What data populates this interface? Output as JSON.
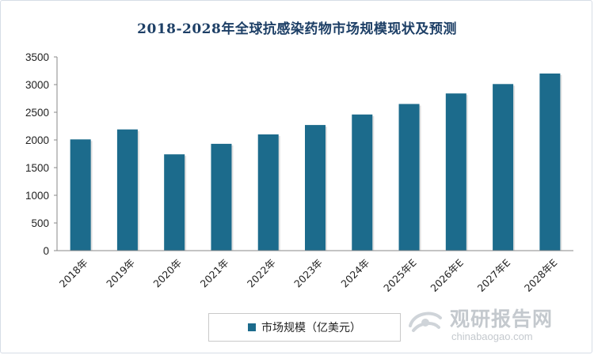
{
  "chart_data": {
    "type": "bar",
    "title": "2018-2028年全球抗感染药物市场规模现状及预测",
    "categories": [
      "2018年",
      "2019年",
      "2020年",
      "2021年",
      "2022年",
      "2023年",
      "2024年",
      "2025年E",
      "2026年E",
      "2027年E",
      "2028年E"
    ],
    "series": [
      {
        "name": "市场规模（亿美元）",
        "values": [
          2010,
          2190,
          1740,
          1930,
          2100,
          2270,
          2460,
          2650,
          2840,
          3010,
          3200
        ]
      }
    ],
    "ylim": [
      0,
      3500
    ],
    "yticks": [
      0,
      500,
      1000,
      1500,
      2000,
      2500,
      3000,
      3500
    ],
    "grid": false,
    "legend_position": "bottom",
    "bar_color": "#1c6b8c"
  },
  "watermark": {
    "name": "观研报告网",
    "url": "chinabaogao.com"
  }
}
